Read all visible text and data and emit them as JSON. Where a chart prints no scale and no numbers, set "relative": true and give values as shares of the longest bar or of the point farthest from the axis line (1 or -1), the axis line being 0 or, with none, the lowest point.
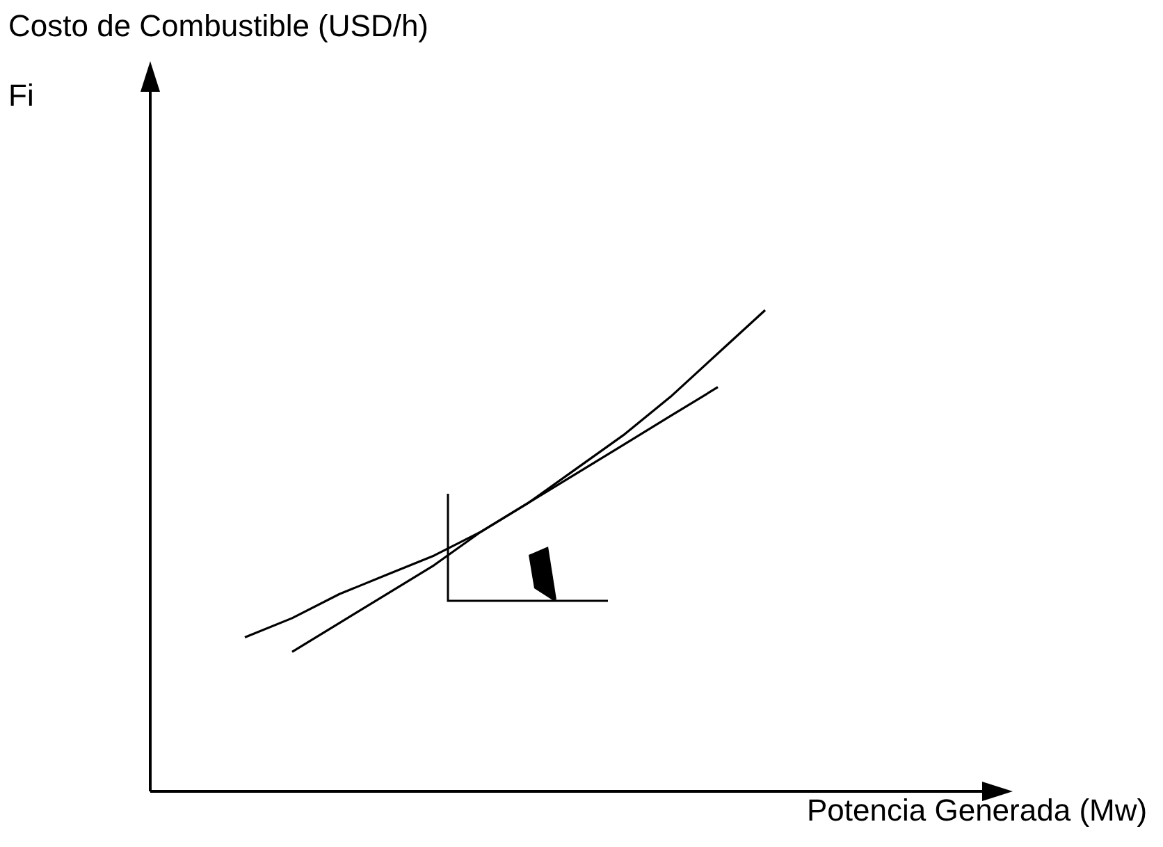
{
  "chart_data": {
    "type": "line",
    "relative": true,
    "xlabel": "Potencia Generada (Mw)",
    "annotations": [
      "Costo de Combustible (USD/h)",
      "Fi"
    ],
    "categories": [
      null,
      null,
      null,
      null,
      null,
      null,
      null,
      null,
      null,
      null,
      null,
      null,
      null,
      null,
      null,
      null,
      null,
      null,
      null
    ],
    "series": [
      {
        "color": "#000000",
        "values": [
          null,
          null,
          0.32,
          0.36,
          0.41,
          0.45,
          0.49,
          0.54,
          0.6,
          0.67,
          0.74,
          0.82,
          0.91,
          1,
          null,
          null,
          null,
          null,
          null
        ]
      },
      {
        "color": "#000000",
        "values": [
          null,
          null,
          null,
          0.29,
          0.35,
          0.41,
          0.47,
          0.54,
          0.6,
          0.66,
          0.72,
          0.78,
          0.84,
          null,
          null,
          null,
          null,
          null,
          null
        ]
      }
    ],
    "tick_labels": false,
    "marker": "none",
    "line_style": "solid"
  }
}
